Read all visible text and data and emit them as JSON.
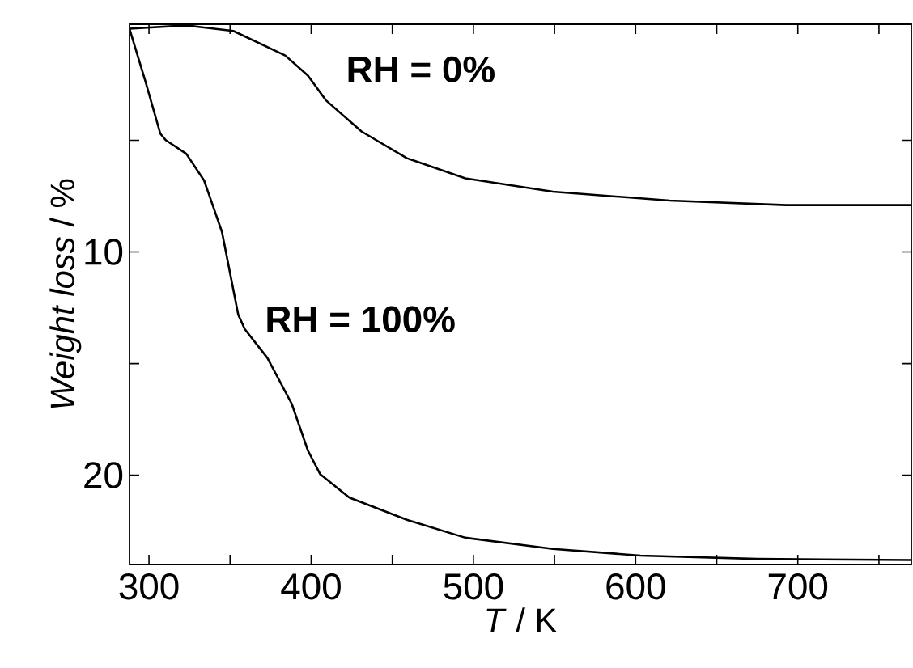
{
  "chart_data": {
    "type": "line",
    "xlabel": "*T* / K",
    "ylabel": "*Weight loss* / %",
    "xlim": [
      288,
      770
    ],
    "ylim": [
      24,
      -0.2
    ],
    "xticks": [
      300,
      {
        "value": 350,
        "label": null
      },
      400,
      {
        "value": 450,
        "label": null
      },
      500,
      {
        "value": 550,
        "label": null
      },
      600,
      {
        "value": 650,
        "label": null
      },
      700,
      {
        "value": 750,
        "label": null
      }
    ],
    "yticks": [
      {
        "value": 5,
        "label": null
      },
      10,
      {
        "value": 15,
        "label": null
      },
      20
    ],
    "series": [
      {
        "name": "**RH = 0%**",
        "color": "#000000",
        "x": [
          288,
          323,
          352,
          384,
          398,
          409,
          431,
          459,
          495,
          549,
          621,
          693,
          770
        ],
        "values": [
          0,
          -0.15,
          0.1,
          1.2,
          2.1,
          3.2,
          4.6,
          5.8,
          6.7,
          7.3,
          7.7,
          7.9,
          7.9
        ]
      },
      {
        "name": "**RH = 100%**",
        "color": "#000000",
        "x": [
          288,
          298,
          307,
          310.5,
          323,
          334,
          345,
          355,
          359,
          373,
          388,
          398,
          405.5,
          423.5,
          459,
          495,
          549,
          603,
          675,
          770
        ],
        "values": [
          0,
          2.4,
          4.7,
          5.0,
          5.6,
          6.8,
          9.1,
          12.8,
          13.45,
          14.75,
          16.8,
          18.9,
          19.95,
          21.0,
          22.0,
          22.8,
          23.3,
          23.6,
          23.75,
          23.8
        ]
      }
    ]
  }
}
